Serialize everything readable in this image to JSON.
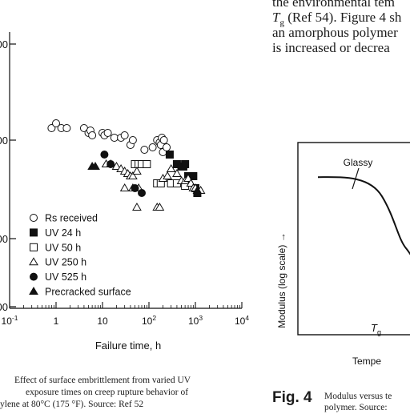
{
  "body_text": {
    "line1": "the environmental tem",
    "line2_prefix": "T",
    "line2_sub": "g",
    "line2_rest": " (Ref 54). Figure 4 sh",
    "line3": "an amorphous polymer",
    "line4": "is increased or decrea"
  },
  "chart_data": [
    {
      "type": "scatter",
      "x_scale": "log",
      "xlabel": "Failure time, h",
      "xtick_labels": [
        "10^-1",
        "1",
        "10",
        "10^2",
        "10^3",
        "10^4"
      ],
      "xlim": [
        0.1,
        10000
      ],
      "ytick_labels_visible": [
        "00",
        "00",
        "00",
        "00"
      ],
      "legend_placement": "lower-left",
      "series": [
        {
          "name": "Rs received",
          "marker": "open-circle",
          "points": [
            [
              0.8,
              5
            ],
            [
              1.0,
              7
            ],
            [
              1.3,
              5
            ],
            [
              1.7,
              5
            ],
            [
              4,
              5
            ],
            [
              5,
              3
            ],
            [
              5.5,
              4
            ],
            [
              6,
              2
            ],
            [
              10,
              3
            ],
            [
              11,
              2
            ],
            [
              13,
              3
            ],
            [
              18,
              1
            ],
            [
              25,
              1
            ],
            [
              30,
              2
            ],
            [
              40,
              -2
            ],
            [
              45,
              0
            ],
            [
              80,
              -4
            ],
            [
              120,
              -3
            ],
            [
              150,
              0
            ],
            [
              170,
              -1
            ],
            [
              180,
              -2
            ],
            [
              190,
              1
            ],
            [
              200,
              -5
            ],
            [
              210,
              0
            ],
            [
              240,
              -3
            ]
          ]
        },
        {
          "name": "UV 24 h",
          "marker": "filled-square",
          "points": [
            [
              280,
              -6
            ],
            [
              400,
              -10
            ],
            [
              500,
              -11
            ],
            [
              550,
              -11
            ],
            [
              600,
              -10
            ],
            [
              700,
              -15
            ],
            [
              900,
              -15
            ],
            [
              1000,
              -20
            ],
            [
              1100,
              -22
            ]
          ]
        },
        {
          "name": "UV 50 h",
          "marker": "open-square",
          "points": [
            [
              50,
              -10
            ],
            [
              60,
              -10
            ],
            [
              70,
              -10
            ],
            [
              90,
              -10
            ],
            [
              150,
              -18
            ],
            [
              180,
              -18
            ],
            [
              300,
              -18
            ],
            [
              400,
              -18
            ],
            [
              600,
              -19
            ]
          ]
        },
        {
          "name": "UV 250 h",
          "marker": "open-triangle",
          "points": [
            [
              12,
              -10
            ],
            [
              15,
              -10
            ],
            [
              20,
              -11
            ],
            [
              25,
              -12
            ],
            [
              30,
              -13
            ],
            [
              35,
              -14
            ],
            [
              40,
              -15
            ],
            [
              45,
              -15
            ],
            [
              55,
              -13
            ],
            [
              30,
              -20
            ],
            [
              45,
              -20
            ],
            [
              60,
              -20
            ],
            [
              55,
              -28
            ],
            [
              150,
              -28
            ],
            [
              170,
              -28
            ],
            [
              200,
              -16
            ],
            [
              250,
              -15
            ],
            [
              300,
              -12
            ],
            [
              400,
              -14
            ],
            [
              500,
              -17
            ],
            [
              600,
              -17
            ],
            [
              700,
              -16
            ],
            [
              800,
              -18
            ],
            [
              900,
              -20
            ],
            [
              1000,
              -20
            ],
            [
              1300,
              -21
            ]
          ]
        },
        {
          "name": "UV 525 h",
          "marker": "filled-circle",
          "points": [
            [
              11,
              -6
            ],
            [
              15,
              -10
            ],
            [
              50,
              -20
            ],
            [
              70,
              -22
            ]
          ]
        },
        {
          "name": "Precracked surface",
          "marker": "filled-triangle",
          "points": [
            [
              6,
              -11
            ],
            [
              7,
              -11
            ],
            [
              1100,
              -21
            ]
          ]
        }
      ]
    },
    {
      "type": "line",
      "ylabel": "Modulus (log scale) →",
      "xlabel_partial": "Tempe",
      "annotations": [
        "Glassy"
      ],
      "marker_label_main": "T",
      "marker_label_sub": "g",
      "series": [
        {
          "points": [
            [
              0,
              0.82
            ],
            [
              0.25,
              0.8
            ],
            [
              0.4,
              0.72
            ],
            [
              0.55,
              0.45
            ],
            [
              0.7,
              0.28
            ],
            [
              1.0,
              0.2
            ]
          ]
        }
      ]
    }
  ],
  "captions": {
    "left_line1": "Effect of surface embrittlement from varied UV",
    "left_line2": "exposure times on creep rupture behavior of",
    "left_line3": "ylene at 80°C (175 °F). Source: Ref 52",
    "fig4_label": "Fig. 4",
    "fig4_line1": "Modulus versus te",
    "fig4_line2": "polymer. Source:"
  }
}
